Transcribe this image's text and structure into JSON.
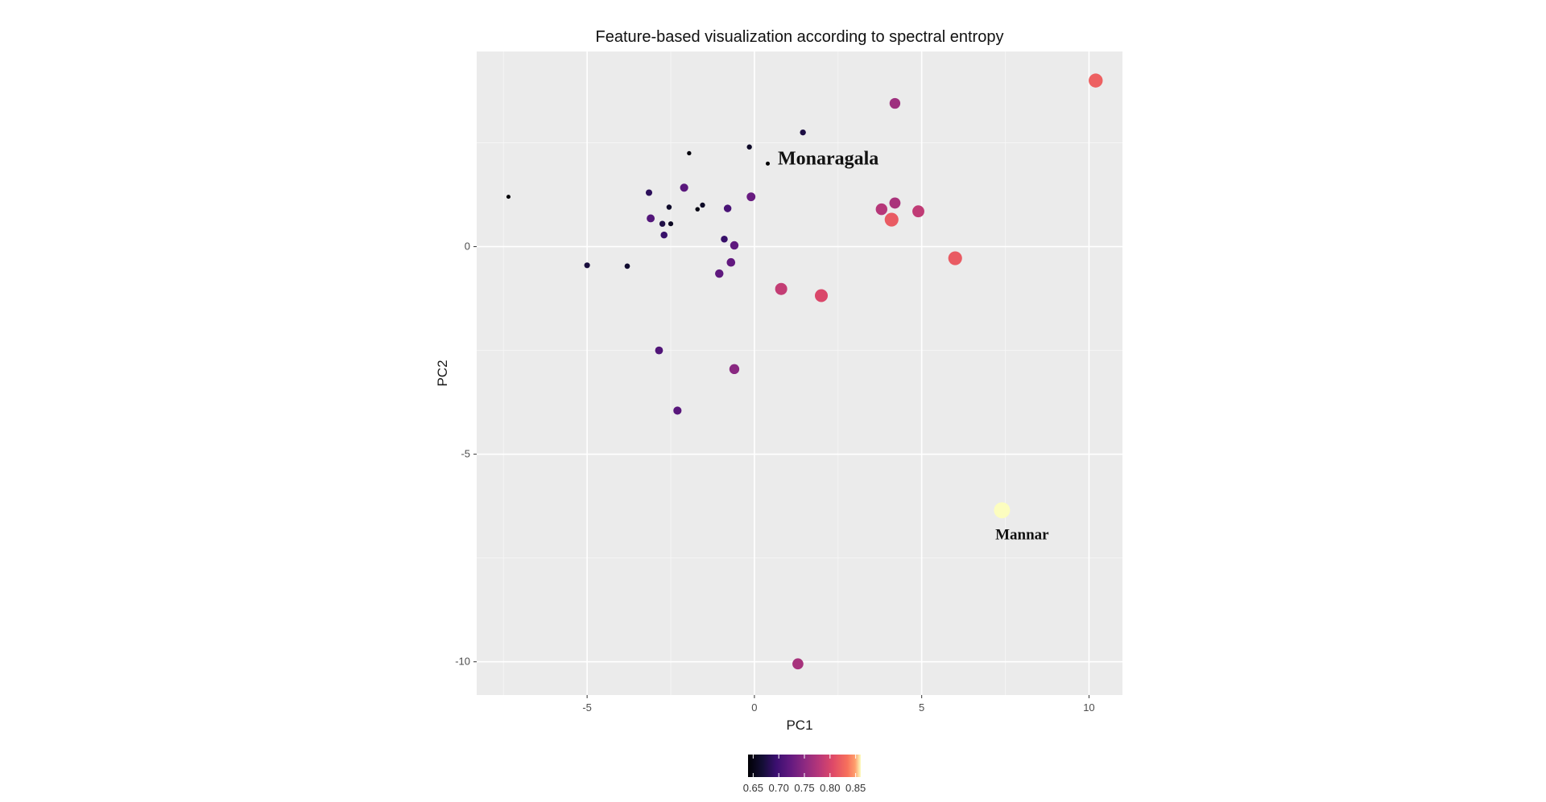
{
  "chart_data": {
    "type": "scatter",
    "title": "Feature-based visualization according to spectral entropy",
    "xlabel": "PC1",
    "ylabel": "PC2",
    "xlim": [
      -8.3,
      11.0
    ],
    "ylim": [
      -10.8,
      4.7
    ],
    "x_ticks": [
      -5,
      0,
      5,
      10
    ],
    "y_ticks": [
      0,
      -5,
      -10
    ],
    "grid": true,
    "legend": {
      "position": "bottom",
      "type": "colorbar",
      "range": [
        0.64,
        0.86
      ],
      "ticks": [
        "0.65",
        "0.70",
        "0.75",
        "0.80",
        "0.85"
      ],
      "tick_values": [
        0.65,
        0.7,
        0.75,
        0.8,
        0.85
      ]
    },
    "points": [
      {
        "x": -7.35,
        "y": 1.2,
        "entropy": 0.641
      },
      {
        "x": -1.95,
        "y": 2.25,
        "entropy": 0.645
      },
      {
        "x": 0.4,
        "y": 2.0,
        "entropy": 0.64
      },
      {
        "x": -1.7,
        "y": 0.9,
        "entropy": 0.648
      },
      {
        "x": -0.15,
        "y": 2.4,
        "entropy": 0.66
      },
      {
        "x": 1.45,
        "y": 2.75,
        "entropy": 0.675
      },
      {
        "x": -5.0,
        "y": -0.45,
        "entropy": 0.672
      },
      {
        "x": -3.8,
        "y": -0.47,
        "entropy": 0.665
      },
      {
        "x": -2.5,
        "y": 0.55,
        "entropy": 0.658
      },
      {
        "x": -2.55,
        "y": 0.95,
        "entropy": 0.662
      },
      {
        "x": -1.55,
        "y": 1.0,
        "entropy": 0.66
      },
      {
        "x": -3.15,
        "y": 1.3,
        "entropy": 0.685
      },
      {
        "x": -2.75,
        "y": 0.55,
        "entropy": 0.676
      },
      {
        "x": -2.7,
        "y": 0.28,
        "entropy": 0.692
      },
      {
        "x": -0.9,
        "y": 0.18,
        "entropy": 0.692
      },
      {
        "x": -0.8,
        "y": 0.92,
        "entropy": 0.705
      },
      {
        "x": -3.1,
        "y": 0.68,
        "entropy": 0.712
      },
      {
        "x": -2.1,
        "y": 1.42,
        "entropy": 0.716
      },
      {
        "x": -0.1,
        "y": 1.2,
        "entropy": 0.726
      },
      {
        "x": -0.6,
        "y": 0.03,
        "entropy": 0.72
      },
      {
        "x": -0.7,
        "y": -0.38,
        "entropy": 0.722
      },
      {
        "x": -1.05,
        "y": -0.65,
        "entropy": 0.72
      },
      {
        "x": -2.85,
        "y": -2.5,
        "entropy": 0.71
      },
      {
        "x": -2.3,
        "y": -3.95,
        "entropy": 0.716
      },
      {
        "x": -0.6,
        "y": -2.95,
        "entropy": 0.748
      },
      {
        "x": 4.2,
        "y": 3.45,
        "entropy": 0.762
      },
      {
        "x": 4.2,
        "y": 1.05,
        "entropy": 0.77
      },
      {
        "x": 3.8,
        "y": 0.9,
        "entropy": 0.778
      },
      {
        "x": 4.9,
        "y": 0.85,
        "entropy": 0.785
      },
      {
        "x": 4.1,
        "y": 0.65,
        "entropy": 0.818
      },
      {
        "x": 0.8,
        "y": -1.02,
        "entropy": 0.787
      },
      {
        "x": 2.0,
        "y": -1.18,
        "entropy": 0.802
      },
      {
        "x": 6.0,
        "y": -0.28,
        "entropy": 0.818
      },
      {
        "x": 10.2,
        "y": 4.0,
        "entropy": 0.822
      },
      {
        "x": 7.4,
        "y": -6.35,
        "entropy": 0.86
      },
      {
        "x": 1.3,
        "y": -10.05,
        "entropy": 0.768
      }
    ],
    "annotations": [
      {
        "text": "Monaragala",
        "x": 0.7,
        "y": 1.98,
        "size": 24
      },
      {
        "text": "Mannar",
        "x": 7.2,
        "y": -7.05,
        "size": 19
      }
    ]
  }
}
